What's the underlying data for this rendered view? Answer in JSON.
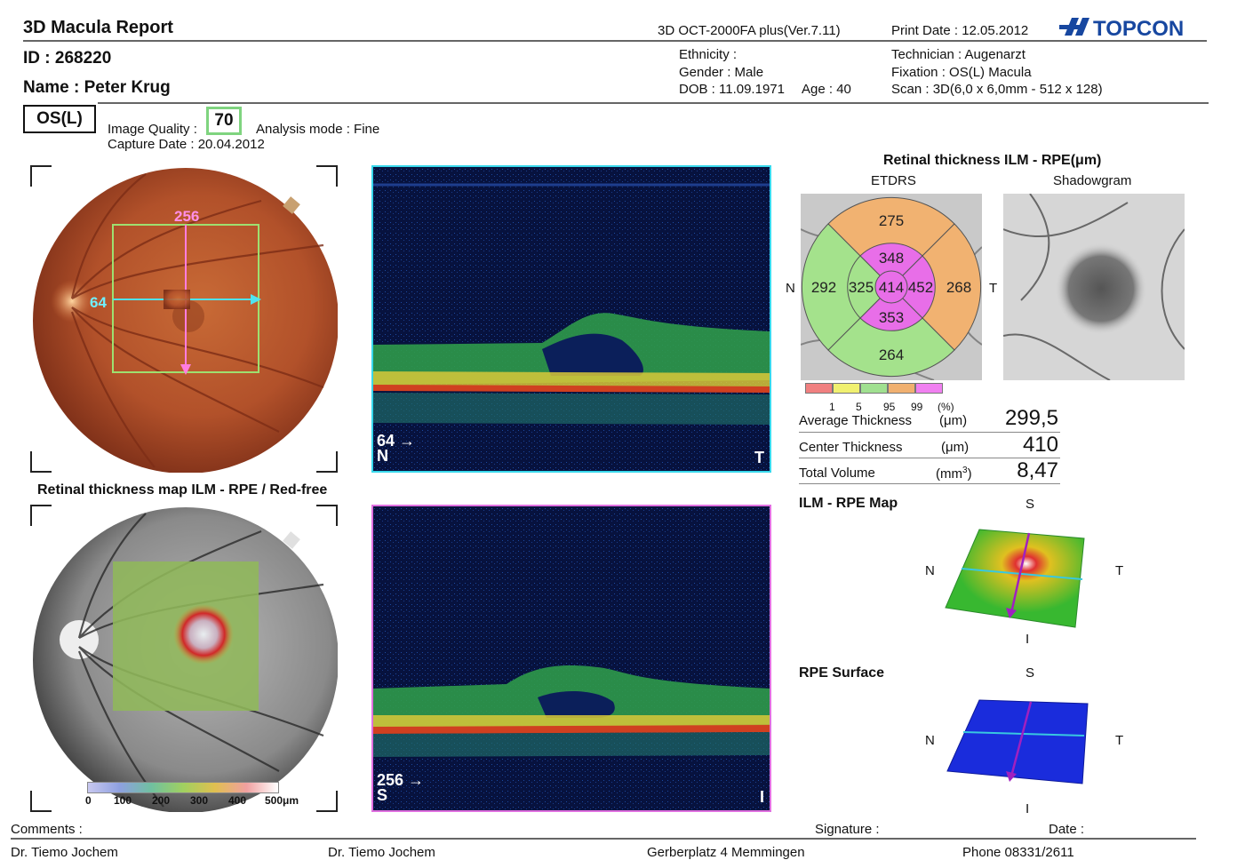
{
  "header": {
    "title": "3D Macula Report",
    "device": "3D OCT-2000FA plus(Ver.7.11)",
    "print_date": "Print Date : 12.05.2012",
    "logo": "TOPCON"
  },
  "patient": {
    "id": "ID : 268220",
    "name": "Name : Peter Krug",
    "ethnicity": "Ethnicity :",
    "gender": "Gender : Male",
    "dob": "DOB : 11.09.1971",
    "age": "Age : 40",
    "technician": "Technician : Augenarzt",
    "fixation": "Fixation : OS(L) Macula",
    "scan": "Scan : 3D(6,0 x 6,0mm - 512 x 128)"
  },
  "exam": {
    "eye": "OS(L)",
    "image_quality_label": "Image Quality :",
    "image_quality_value": "70",
    "analysis_mode": "Analysis mode : Fine",
    "capture_date": "Capture Date : 20.04.2012"
  },
  "fundus": {
    "vertical_label": "256",
    "horizontal_label": "64",
    "map_title": "Retinal thickness map ILM - RPE / Red-free",
    "scale_ticks": [
      "0",
      "100",
      "200",
      "300",
      "400",
      "500μm"
    ]
  },
  "oct": {
    "top_scan": {
      "line": "64",
      "left": "N",
      "right": "T"
    },
    "bottom_scan": {
      "line": "256",
      "left": "S",
      "right": "I"
    }
  },
  "thickness": {
    "title": "Retinal thickness ILM - RPE(μm)",
    "etdrs_label": "ETDRS",
    "shadowgram_label": "Shadowgram",
    "side_n": "N",
    "side_t": "T",
    "etdrs": {
      "outer_superior": "275",
      "outer_nasal": "292",
      "outer_temporal": "268",
      "outer_inferior": "264",
      "inner_superior": "348",
      "inner_nasal": "325",
      "inner_temporal": "452",
      "inner_inferior": "353",
      "center": "414"
    },
    "legend_ticks": [
      "1",
      "5",
      "95",
      "99",
      "(%)"
    ],
    "legend_colors": [
      "#f08080",
      "#f0f070",
      "#a0e090",
      "#f0b070",
      "#f080f0"
    ],
    "stats": [
      {
        "label": "Average Thickness",
        "unit": "(μm)",
        "value": "299,5"
      },
      {
        "label": "Center Thickness",
        "unit": "(μm)",
        "value": "410"
      },
      {
        "label": "Total Volume",
        "unit": "(mm3)",
        "value": "8,47"
      }
    ]
  },
  "maps3d": {
    "ilm_title": "ILM - RPE Map",
    "rpe_title": "RPE Surface",
    "s": "S",
    "i": "I",
    "n": "N",
    "t": "T"
  },
  "footer": {
    "comments": "Comments :",
    "signature": "Signature :",
    "date": "Date :",
    "doctor1": "Dr. Tiemo Jochem",
    "doctor2": "Dr. Tiemo Jochem",
    "address": "Gerberplatz 4 Memmingen",
    "phone": "Phone 08331/2611"
  }
}
